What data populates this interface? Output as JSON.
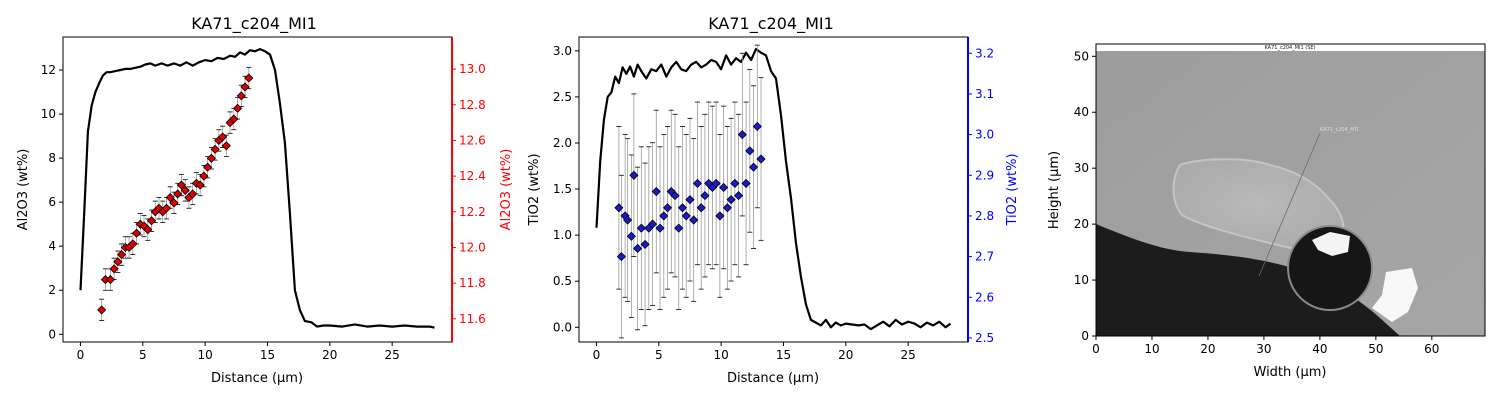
{
  "chart_data": [
    {
      "type": "line+scatter",
      "title": "KA71_c204_MI1",
      "xlabel": "Distance (µm)",
      "ylabel_left": "Al2O3 (wt%)",
      "ylabel_right": "Al2O3 (wt%)",
      "right_axis_color": "#ff0000",
      "marker_color": "#dd0000",
      "line_color": "#000000",
      "xlim": [
        -1.4,
        29.8
      ],
      "ylim_left": [
        -0.35,
        13.5
      ],
      "ylim_right": [
        11.47,
        13.18
      ],
      "xticks": [
        0,
        5,
        10,
        15,
        20,
        25
      ],
      "yticks_left": [
        0,
        2,
        4,
        6,
        8,
        10,
        12
      ],
      "yticks_right": [
        11.6,
        11.8,
        12.0,
        12.2,
        12.4,
        12.6,
        12.8,
        13.0
      ],
      "yticks_right_labels": [
        "11.6",
        "11.8",
        "12.0",
        "12.2",
        "12.4",
        "12.6",
        "12.8",
        "13.0"
      ],
      "profile": {
        "x": [
          0,
          0.3,
          0.6,
          0.9,
          1.2,
          1.5,
          1.8,
          2.1,
          2.4,
          2.8,
          3.2,
          3.6,
          4.0,
          4.4,
          4.8,
          5.2,
          5.6,
          6.0,
          6.5,
          7.0,
          7.5,
          8.0,
          8.5,
          9.0,
          9.5,
          10.0,
          10.5,
          11.0,
          11.5,
          12.0,
          12.4,
          12.8,
          13.2,
          13.6,
          14.0,
          14.4,
          14.8,
          15.2,
          15.6,
          16.0,
          16.4,
          16.8,
          17.2,
          17.6,
          18.0,
          18.5,
          19.0,
          19.5,
          20.0,
          21.0,
          22.0,
          23.0,
          24.0,
          25.0,
          26.0,
          27.0,
          28.0,
          28.4
        ],
        "y": [
          2.0,
          5.5,
          9.2,
          10.4,
          11.0,
          11.4,
          11.75,
          11.9,
          11.9,
          11.95,
          12.0,
          12.05,
          12.05,
          12.1,
          12.15,
          12.25,
          12.3,
          12.2,
          12.3,
          12.2,
          12.3,
          12.2,
          12.35,
          12.2,
          12.35,
          12.45,
          12.4,
          12.55,
          12.5,
          12.65,
          12.6,
          12.8,
          12.7,
          12.9,
          12.85,
          12.95,
          12.85,
          12.7,
          12.0,
          10.5,
          8.7,
          5.5,
          2.0,
          1.1,
          0.6,
          0.55,
          0.35,
          0.4,
          0.4,
          0.35,
          0.45,
          0.35,
          0.4,
          0.35,
          0.4,
          0.35,
          0.35,
          0.3
        ]
      },
      "points": {
        "x": [
          1.7,
          2.0,
          2.4,
          2.7,
          3.0,
          3.3,
          3.6,
          3.9,
          4.2,
          4.5,
          4.8,
          5.1,
          5.4,
          5.7,
          6.0,
          6.3,
          6.6,
          6.9,
          7.2,
          7.5,
          7.8,
          8.1,
          8.4,
          8.7,
          9.0,
          9.3,
          9.6,
          9.9,
          10.2,
          10.5,
          10.8,
          11.1,
          11.4,
          11.7,
          12.0,
          12.3,
          12.6,
          12.9,
          13.2,
          13.5
        ],
        "y": [
          11.65,
          11.82,
          11.82,
          11.88,
          11.92,
          11.96,
          12.0,
          12.0,
          12.02,
          12.08,
          12.13,
          12.12,
          12.1,
          12.15,
          12.2,
          12.22,
          12.2,
          12.22,
          12.28,
          12.25,
          12.3,
          12.35,
          12.32,
          12.28,
          12.3,
          12.36,
          12.35,
          12.4,
          12.45,
          12.5,
          12.55,
          12.6,
          12.62,
          12.57,
          12.7,
          12.72,
          12.78,
          12.85,
          12.9,
          12.95
        ],
        "err": [
          0.06,
          0.06,
          0.06,
          0.06,
          0.06,
          0.06,
          0.06,
          0.06,
          0.06,
          0.06,
          0.06,
          0.06,
          0.06,
          0.06,
          0.06,
          0.06,
          0.06,
          0.06,
          0.06,
          0.06,
          0.06,
          0.06,
          0.06,
          0.06,
          0.06,
          0.06,
          0.06,
          0.06,
          0.06,
          0.06,
          0.06,
          0.06,
          0.06,
          0.06,
          0.06,
          0.06,
          0.06,
          0.06,
          0.06,
          0.06
        ]
      }
    },
    {
      "type": "line+scatter",
      "title": "KA71_c204_MI1",
      "xlabel": "Distance (µm)",
      "ylabel_left": "TiO2 (wt%)",
      "ylabel_right": "TiO2 (wt%)",
      "right_axis_color": "#0000ff",
      "marker_color": "#1a1acd",
      "line_color": "#000000",
      "xlim": [
        -1.4,
        29.8
      ],
      "ylim_left": [
        -0.16,
        3.15
      ],
      "ylim_right": [
        2.49,
        3.24
      ],
      "xticks": [
        0,
        5,
        10,
        15,
        20,
        25
      ],
      "yticks_left": [
        0.0,
        0.5,
        1.0,
        1.5,
        2.0,
        2.5,
        3.0
      ],
      "yticks_left_labels": [
        "0.0",
        "0.5",
        "1.0",
        "1.5",
        "2.0",
        "2.5",
        "3.0"
      ],
      "yticks_right": [
        2.5,
        2.6,
        2.7,
        2.8,
        2.9,
        3.0,
        3.1,
        3.2
      ],
      "yticks_right_labels": [
        "2.5",
        "2.6",
        "2.7",
        "2.8",
        "2.9",
        "3.0",
        "3.1",
        "3.2"
      ],
      "profile": {
        "x": [
          0,
          0.3,
          0.6,
          0.9,
          1.2,
          1.5,
          1.8,
          2.1,
          2.4,
          2.7,
          3.0,
          3.3,
          3.6,
          4.0,
          4.4,
          4.8,
          5.2,
          5.6,
          6.0,
          6.4,
          6.8,
          7.2,
          7.6,
          8.0,
          8.4,
          8.8,
          9.2,
          9.6,
          10.0,
          10.4,
          10.8,
          11.2,
          11.6,
          12.0,
          12.4,
          12.8,
          13.2,
          13.6,
          14.0,
          14.4,
          14.8,
          15.2,
          15.6,
          16.0,
          16.4,
          16.8,
          17.2,
          17.6,
          18.0,
          18.4,
          18.8,
          19.2,
          19.6,
          20.0,
          20.5,
          21.0,
          21.5,
          22.0,
          22.5,
          23.0,
          23.5,
          24.0,
          24.5,
          25.0,
          25.5,
          26.0,
          26.5,
          27.0,
          27.5,
          28.0,
          28.4
        ],
        "y": [
          1.08,
          1.8,
          2.25,
          2.5,
          2.55,
          2.72,
          2.65,
          2.82,
          2.75,
          2.83,
          2.72,
          2.85,
          2.78,
          2.7,
          2.8,
          2.78,
          2.85,
          2.72,
          2.82,
          2.88,
          2.8,
          2.78,
          2.85,
          2.88,
          2.82,
          2.85,
          2.9,
          2.88,
          2.8,
          2.95,
          2.85,
          2.92,
          2.88,
          2.98,
          2.9,
          3.02,
          2.98,
          2.95,
          2.78,
          2.7,
          2.3,
          1.8,
          1.4,
          0.92,
          0.55,
          0.25,
          0.08,
          0.05,
          0.02,
          0.08,
          0.0,
          0.05,
          0.02,
          0.04,
          0.03,
          0.02,
          0.03,
          -0.02,
          0.02,
          0.06,
          0.01,
          0.08,
          0.03,
          0.06,
          0.04,
          0.0,
          0.05,
          0.02,
          0.06,
          0.0,
          0.04
        ]
      },
      "points": {
        "x": [
          1.8,
          2.0,
          2.3,
          2.5,
          2.8,
          3.0,
          3.3,
          3.6,
          3.9,
          4.2,
          4.5,
          4.8,
          5.1,
          5.4,
          5.7,
          6.0,
          6.3,
          6.6,
          6.9,
          7.2,
          7.5,
          7.8,
          8.1,
          8.4,
          8.7,
          9.0,
          9.3,
          9.6,
          9.9,
          10.2,
          10.5,
          10.8,
          11.1,
          11.4,
          11.7,
          12.0,
          12.3,
          12.6,
          12.9,
          13.2
        ],
        "y": [
          2.82,
          2.7,
          2.8,
          2.79,
          2.75,
          2.9,
          2.72,
          2.77,
          2.73,
          2.77,
          2.78,
          2.86,
          2.77,
          2.8,
          2.82,
          2.86,
          2.85,
          2.77,
          2.82,
          2.8,
          2.84,
          2.79,
          2.88,
          2.82,
          2.85,
          2.88,
          2.87,
          2.88,
          2.8,
          2.87,
          2.82,
          2.84,
          2.88,
          2.85,
          3.0,
          2.88,
          2.96,
          2.92,
          3.02,
          2.94
        ],
        "err": [
          0.2,
          0.2,
          0.2,
          0.2,
          0.2,
          0.2,
          0.2,
          0.2,
          0.2,
          0.2,
          0.2,
          0.2,
          0.2,
          0.2,
          0.2,
          0.2,
          0.2,
          0.2,
          0.2,
          0.2,
          0.2,
          0.2,
          0.2,
          0.2,
          0.2,
          0.2,
          0.2,
          0.2,
          0.2,
          0.2,
          0.2,
          0.2,
          0.2,
          0.2,
          0.2,
          0.2,
          0.2,
          0.2,
          0.2,
          0.2
        ]
      }
    },
    {
      "type": "image",
      "xlabel": "Width (µm)",
      "ylabel": "Height (µm)",
      "xlim": [
        0,
        69.5
      ],
      "ylim": [
        0,
        52.2
      ],
      "xticks": [
        0,
        10,
        20,
        30,
        40,
        50,
        60
      ],
      "yticks": [
        0,
        10,
        20,
        30,
        40,
        50
      ],
      "image_caption": "KA71_c204_MI1 (SE)",
      "profile_label": "KA71_c204_MI1"
    }
  ]
}
